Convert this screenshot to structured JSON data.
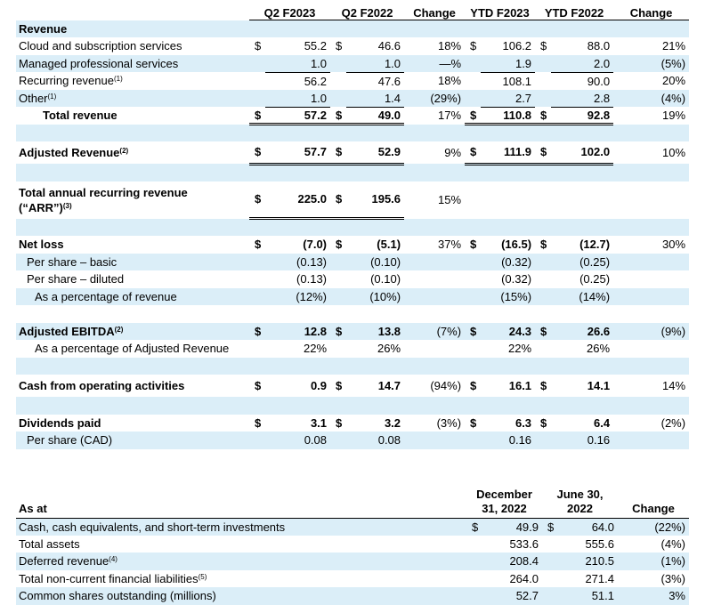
{
  "top": {
    "headers": [
      "",
      "Q2 F2023",
      "Q2 F2022",
      "Change",
      "YTD F2023",
      "YTD F2022",
      "Change"
    ],
    "revenue": {
      "heading": "Revenue",
      "rows": [
        {
          "label": "Cloud and subscription services",
          "sup": "",
          "c1": "$",
          "v1": "55.2",
          "c2": "$",
          "v2": "46.6",
          "ch1": "18%",
          "c3": "$",
          "v3": "106.2",
          "c4": "$",
          "v4": "88.0",
          "ch2": "21%"
        },
        {
          "label": "Managed professional services",
          "sup": "",
          "c1": "",
          "v1": "1.0",
          "c2": "",
          "v2": "1.0",
          "ch1": "—%",
          "c3": "",
          "v3": "1.9",
          "c4": "",
          "v4": "2.0",
          "ch2": "(5%)"
        },
        {
          "label": "Recurring revenue",
          "sup": "(1)",
          "c1": "",
          "v1": "56.2",
          "c2": "",
          "v2": "47.6",
          "ch1": "18%",
          "c3": "",
          "v3": "108.1",
          "c4": "",
          "v4": "90.0",
          "ch2": "20%"
        },
        {
          "label": "Other",
          "sup": "(1)",
          "c1": "",
          "v1": "1.0",
          "c2": "",
          "v2": "1.4",
          "ch1": "(29%)",
          "c3": "",
          "v3": "2.7",
          "c4": "",
          "v4": "2.8",
          "ch2": "(4%)"
        }
      ],
      "total": {
        "label": "Total revenue",
        "c1": "$",
        "v1": "57.2",
        "c2": "$",
        "v2": "49.0",
        "ch1": "17%",
        "c3": "$",
        "v3": "110.8",
        "c4": "$",
        "v4": "92.8",
        "ch2": "19%"
      }
    },
    "adjusted_revenue": {
      "label": "Adjusted Revenue",
      "sup": "(2)",
      "c1": "$",
      "v1": "57.7",
      "c2": "$",
      "v2": "52.9",
      "ch1": "9%",
      "c3": "$",
      "v3": "111.9",
      "c4": "$",
      "v4": "102.0",
      "ch2": "10%"
    },
    "arr": {
      "label_line1": "Total annual recurring revenue",
      "label_line2": "(“ARR”)",
      "sup": "(3)",
      "c1": "$",
      "v1": "225.0",
      "c2": "$",
      "v2": "195.6",
      "ch1": "15%"
    },
    "net_loss": {
      "label": "Net loss",
      "c1": "$",
      "v1": "(7.0)",
      "c2": "$",
      "v2": "(5.1)",
      "ch1": "37%",
      "c3": "$",
      "v3": "(16.5)",
      "c4": "$",
      "v4": "(12.7)",
      "ch2": "30%"
    },
    "per_share_basic": {
      "label": "Per share – basic",
      "v1": "(0.13)",
      "v2": "(0.10)",
      "v3": "(0.32)",
      "v4": "(0.25)"
    },
    "per_share_diluted": {
      "label": "Per share – diluted",
      "v1": "(0.13)",
      "v2": "(0.10)",
      "v3": "(0.32)",
      "v4": "(0.25)"
    },
    "net_loss_pct": {
      "label": "As a percentage of revenue",
      "v1": "(12%)",
      "v2": "(10%)",
      "v3": "(15%)",
      "v4": "(14%)"
    },
    "adj_ebitda": {
      "label": "Adjusted EBITDA",
      "sup": "(2)",
      "c1": "$",
      "v1": "12.8",
      "c2": "$",
      "v2": "13.8",
      "ch1": "(7%)",
      "c3": "$",
      "v3": "24.3",
      "c4": "$",
      "v4": "26.6",
      "ch2": "(9%)"
    },
    "adj_ebitda_pct": {
      "label": "As a percentage of Adjusted Revenue",
      "v1": "22%",
      "v2": "26%",
      "v3": "22%",
      "v4": "26%"
    },
    "cash_ops": {
      "label": "Cash from operating activities",
      "c1": "$",
      "v1": "0.9",
      "c2": "$",
      "v2": "14.7",
      "ch1": "(94%)",
      "c3": "$",
      "v3": "16.1",
      "c4": "$",
      "v4": "14.1",
      "ch2": "14%"
    },
    "dividends": {
      "label": "Dividends paid",
      "c1": "$",
      "v1": "3.1",
      "c2": "$",
      "v2": "3.2",
      "ch1": "(3%)",
      "c3": "$",
      "v3": "6.3",
      "c4": "$",
      "v4": "6.4",
      "ch2": "(2%)"
    },
    "dividends_per_share": {
      "label": "Per share (CAD)",
      "v1": "0.08",
      "v2": "0.08",
      "v3": "0.16",
      "v4": "0.16"
    }
  },
  "bottom": {
    "header": {
      "label": "As at",
      "col1_line1": "December",
      "col1_line2": "31, 2022",
      "col2_line1": "June 30,",
      "col2_line2": "2022",
      "change": "Change"
    },
    "rows": [
      {
        "label": "Cash, cash equivalents, and short-term investments",
        "sup": "",
        "c1": "$",
        "v1": "49.9",
        "c2": "$",
        "v2": "64.0",
        "ch": "(22%)"
      },
      {
        "label": "Total assets",
        "sup": "",
        "c1": "",
        "v1": "533.6",
        "c2": "",
        "v2": "555.6",
        "ch": "(4%)"
      },
      {
        "label": "Deferred revenue",
        "sup": "(4)",
        "c1": "",
        "v1": "208.4",
        "c2": "",
        "v2": "210.5",
        "ch": "(1%)"
      },
      {
        "label": "Total non-current financial liabilities",
        "sup": "(5)",
        "c1": "",
        "v1": "264.0",
        "c2": "",
        "v2": "271.4",
        "ch": "(3%)"
      },
      {
        "label": "Common shares outstanding (millions)",
        "sup": "",
        "c1": "",
        "v1": "52.7",
        "c2": "",
        "v2": "51.1",
        "ch": "3%"
      }
    ]
  }
}
